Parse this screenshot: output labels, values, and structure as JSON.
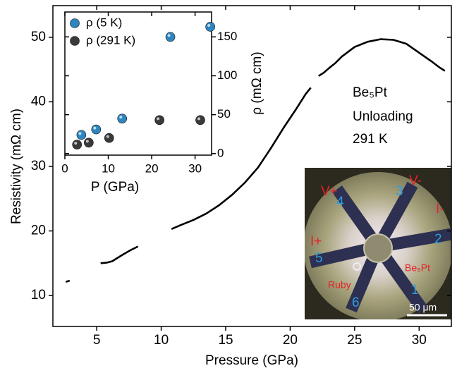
{
  "chart_data": [
    {
      "type": "line",
      "xlabel": "Pressure (GPa)",
      "ylabel": "Resistivity (mΩ cm)",
      "xlim": [
        1.6,
        32.5
      ],
      "ylim": [
        5.2,
        54.9
      ],
      "xticks": [
        5,
        10,
        15,
        20,
        25,
        30
      ],
      "yticks": [
        10,
        20,
        30,
        40,
        50
      ],
      "color": "#000000",
      "x": [
        2.6,
        2.9,
        null,
        5.3,
        5.8,
        6.2,
        7.0,
        7.6,
        8.2,
        null,
        10.8,
        11.5,
        12.5,
        13.5,
        14.5,
        15.5,
        16.5,
        17.5,
        18.5,
        19.5,
        20.5,
        21.2,
        21.6,
        null,
        22.2,
        22.6,
        23.0,
        23.5,
        24.0,
        25.0,
        26.0,
        27.0,
        28.0,
        29.0,
        30.0,
        31.0,
        31.6,
        32.0
      ],
      "values": [
        12.1,
        12.3,
        null,
        15.0,
        15.1,
        15.3,
        16.3,
        17.0,
        17.6,
        null,
        20.3,
        20.9,
        21.7,
        22.7,
        24.0,
        25.6,
        27.5,
        29.8,
        32.8,
        36.0,
        39.0,
        41.2,
        42.2,
        null,
        44.0,
        44.5,
        45.2,
        46.0,
        47.0,
        48.5,
        49.3,
        49.7,
        49.6,
        49.0,
        47.6,
        46.2,
        45.3,
        44.8
      ],
      "annotations": [
        "Be₅Pt",
        "Unloading",
        "291 K"
      ]
    },
    {
      "type": "scatter",
      "xlabel": "P (GPa)",
      "ylabel": "ρ (mΩ cm)",
      "xlim": [
        0,
        33.8
      ],
      "ylim": [
        -2,
        182
      ],
      "xticks": [
        0,
        10,
        20,
        30
      ],
      "yticks": [
        0,
        50,
        100,
        150
      ],
      "legend": "top-left",
      "series": [
        {
          "name": "ρ (5 K)",
          "color": "#2e86c1",
          "x": [
            3.8,
            7.2,
            13.2,
            24.3,
            33.5
          ],
          "values": [
            24,
            31,
            45,
            150,
            163
          ]
        },
        {
          "name": "ρ (291 K)",
          "color": "#3a3a3a",
          "x": [
            2.8,
            5.5,
            10.2,
            21.8,
            31.2
          ],
          "values": [
            11.5,
            14,
            20,
            43,
            43
          ]
        }
      ]
    }
  ],
  "photo": {
    "labels": [
      "V+",
      "4",
      "3",
      "V-",
      "I-",
      "2",
      "I+",
      "5",
      "Be₅Pt",
      "Ruby",
      "6",
      "1",
      "50 μm"
    ]
  }
}
